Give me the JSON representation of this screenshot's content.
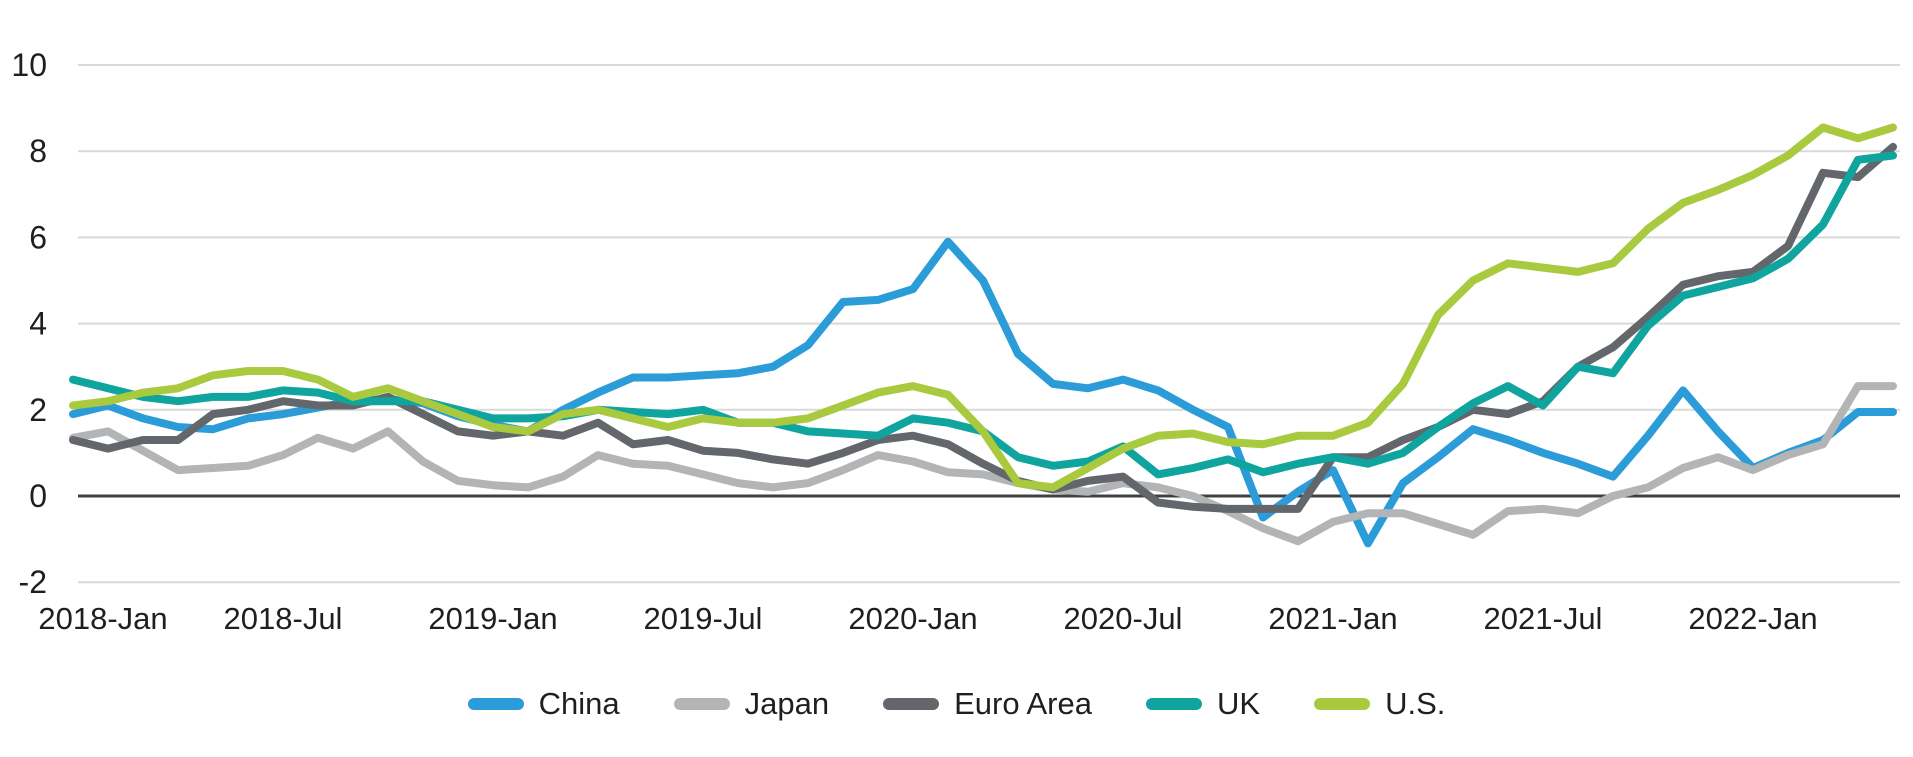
{
  "chart_data": {
    "type": "line",
    "unit": "percent",
    "frequency": "monthly",
    "x_start": "2018-Jan",
    "x_end": "2022-May",
    "x_tick_labels": [
      "2018-Jan",
      "2018-Jul",
      "2019-Jan",
      "2019-Jul",
      "2020-Jan",
      "2020-Jul",
      "2021-Jan",
      "2021-Jul",
      "2022-Jan"
    ],
    "y_tick_labels": [
      "10",
      "8",
      "6",
      "4",
      "2",
      "0",
      "-2"
    ],
    "ylim": [
      -2,
      10
    ],
    "grid": "horizontal",
    "legend_position": "bottom-center",
    "colors": {
      "grid_line": "#D9D9D9",
      "zero_line": "#404040",
      "text": "#1F1F1F",
      "background": "#FFFFFF"
    },
    "series": [
      {
        "name": "China",
        "color": "#2B9CD8",
        "values": [
          1.9,
          2.1,
          1.8,
          1.6,
          1.55,
          1.8,
          1.9,
          2.05,
          2.2,
          2.25,
          2.15,
          1.85,
          1.65,
          1.5,
          2.0,
          2.4,
          2.75,
          2.75,
          2.8,
          2.85,
          3.0,
          3.5,
          4.5,
          4.55,
          4.8,
          5.9,
          5.0,
          3.3,
          2.6,
          2.5,
          2.7,
          2.45,
          2.0,
          1.6,
          -0.5,
          0.1,
          0.6,
          -1.1,
          0.3,
          0.9,
          1.55,
          1.3,
          1.0,
          0.75,
          0.45,
          1.4,
          2.45,
          1.5,
          0.65,
          1.0,
          1.3,
          1.95,
          1.95
        ]
      },
      {
        "name": "Japan",
        "color": "#B3B4B6",
        "values": [
          1.35,
          1.5,
          1.05,
          0.6,
          0.65,
          0.7,
          0.95,
          1.35,
          1.1,
          1.5,
          0.8,
          0.35,
          0.25,
          0.2,
          0.45,
          0.95,
          0.75,
          0.7,
          0.5,
          0.3,
          0.2,
          0.3,
          0.6,
          0.95,
          0.8,
          0.55,
          0.5,
          0.3,
          0.15,
          0.1,
          0.3,
          0.2,
          0.0,
          -0.35,
          -0.75,
          -1.05,
          -0.6,
          -0.4,
          -0.4,
          -0.65,
          -0.9,
          -0.35,
          -0.3,
          -0.4,
          0.0,
          0.2,
          0.65,
          0.9,
          0.6,
          0.95,
          1.2,
          2.55,
          2.55
        ]
      },
      {
        "name": "Euro Area",
        "color": "#63666B",
        "values": [
          1.3,
          1.1,
          1.3,
          1.3,
          1.9,
          2.0,
          2.2,
          2.1,
          2.1,
          2.3,
          1.9,
          1.5,
          1.4,
          1.5,
          1.4,
          1.7,
          1.2,
          1.3,
          1.05,
          1.0,
          0.85,
          0.75,
          1.0,
          1.3,
          1.4,
          1.2,
          0.75,
          0.35,
          0.15,
          0.35,
          0.45,
          -0.15,
          -0.25,
          -0.3,
          -0.3,
          -0.3,
          0.9,
          0.9,
          1.3,
          1.6,
          2.0,
          1.9,
          2.2,
          3.0,
          3.45,
          4.15,
          4.9,
          5.1,
          5.2,
          5.8,
          7.5,
          7.4,
          8.1
        ]
      },
      {
        "name": "UK",
        "color": "#0FA49D",
        "values": [
          2.7,
          2.5,
          2.3,
          2.2,
          2.3,
          2.3,
          2.45,
          2.4,
          2.2,
          2.2,
          2.2,
          2.0,
          1.8,
          1.8,
          1.85,
          2.0,
          1.95,
          1.9,
          2.0,
          1.7,
          1.7,
          1.5,
          1.45,
          1.4,
          1.8,
          1.7,
          1.5,
          0.9,
          0.7,
          0.8,
          1.15,
          0.5,
          0.65,
          0.85,
          0.55,
          0.75,
          0.9,
          0.75,
          1.0,
          1.6,
          2.15,
          2.55,
          2.1,
          3.0,
          2.85,
          3.95,
          4.65,
          4.85,
          5.05,
          5.5,
          6.3,
          7.8,
          7.9
        ]
      },
      {
        "name": "U.S.",
        "color": "#A9C93F",
        "values": [
          2.1,
          2.2,
          2.4,
          2.5,
          2.8,
          2.9,
          2.9,
          2.7,
          2.3,
          2.5,
          2.2,
          1.9,
          1.6,
          1.5,
          1.9,
          2.0,
          1.8,
          1.6,
          1.8,
          1.7,
          1.7,
          1.8,
          2.1,
          2.4,
          2.55,
          2.35,
          1.5,
          0.3,
          0.2,
          0.65,
          1.1,
          1.4,
          1.45,
          1.25,
          1.2,
          1.4,
          1.4,
          1.7,
          2.6,
          4.2,
          5.0,
          5.4,
          5.3,
          5.2,
          5.4,
          6.2,
          6.8,
          7.1,
          7.45,
          7.9,
          8.55,
          8.3,
          8.55
        ]
      }
    ]
  }
}
